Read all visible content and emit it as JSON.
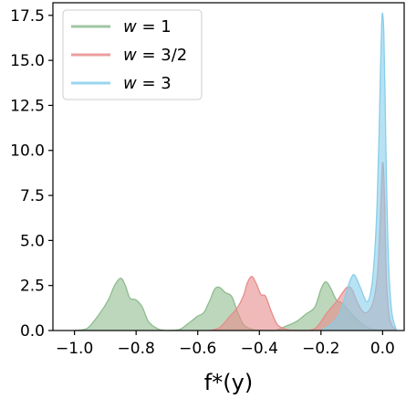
{
  "chart_data": {
    "type": "area",
    "title": "",
    "xlabel": "f*(y)",
    "ylabel": "",
    "xlim": [
      -1.07,
      0.07
    ],
    "ylim": [
      0,
      18.2
    ],
    "x_ticks": [
      -1.0,
      -0.8,
      -0.6,
      -0.4,
      -0.2,
      0.0
    ],
    "x_tick_labels": [
      "−1.0",
      "−0.8",
      "−0.6",
      "−0.4",
      "−0.2",
      "0.0"
    ],
    "y_ticks": [
      0.0,
      2.5,
      5.0,
      7.5,
      10.0,
      12.5,
      15.0,
      17.5
    ],
    "y_tick_labels": [
      "0.0",
      "2.5",
      "5.0",
      "7.5",
      "10.0",
      "12.5",
      "15.0",
      "17.5"
    ],
    "grid": false,
    "legend_position": "top-left",
    "series": [
      {
        "name": "w = 1",
        "legend_parts": [
          "w",
          " = 1"
        ],
        "color": "#8fbc8f",
        "x": [
          -1.0,
          -0.96,
          -0.92,
          -0.89,
          -0.87,
          -0.85,
          -0.835,
          -0.82,
          -0.8,
          -0.78,
          -0.76,
          -0.73,
          -0.7,
          -0.66,
          -0.63,
          -0.6,
          -0.58,
          -0.56,
          -0.545,
          -0.53,
          -0.51,
          -0.49,
          -0.47,
          -0.45,
          -0.42,
          -0.39,
          -0.35,
          -0.32,
          -0.28,
          -0.25,
          -0.22,
          -0.2,
          -0.185,
          -0.17,
          -0.15,
          -0.13,
          -0.1,
          -0.07,
          -0.04,
          0.0
        ],
        "y": [
          0.0,
          0.1,
          0.9,
          1.7,
          2.5,
          2.9,
          2.5,
          1.8,
          1.7,
          1.3,
          0.5,
          0.1,
          0.0,
          0.05,
          0.4,
          0.8,
          1.0,
          1.7,
          2.3,
          2.4,
          2.1,
          1.9,
          1.0,
          0.3,
          0.05,
          0.0,
          0.0,
          0.2,
          0.5,
          0.9,
          1.3,
          2.3,
          2.7,
          2.4,
          1.7,
          1.5,
          0.9,
          0.4,
          0.1,
          0.0
        ]
      },
      {
        "name": "w = 3/2",
        "legend_parts": [
          "w",
          " = 3/2"
        ],
        "color": "#e88c8c",
        "x": [
          -0.56,
          -0.53,
          -0.5,
          -0.47,
          -0.45,
          -0.44,
          -0.425,
          -0.41,
          -0.395,
          -0.38,
          -0.36,
          -0.34,
          -0.31,
          -0.28,
          -0.25,
          -0.22,
          -0.2,
          -0.18,
          -0.15,
          -0.13,
          -0.115,
          -0.1,
          -0.08,
          -0.06,
          -0.04,
          -0.025,
          -0.015,
          -0.008,
          0.0,
          0.006,
          0.012,
          0.02,
          0.03,
          0.045
        ],
        "y": [
          0.0,
          0.15,
          0.7,
          1.3,
          2.0,
          2.6,
          3.0,
          2.6,
          2.0,
          1.9,
          1.0,
          0.3,
          0.05,
          0.0,
          0.0,
          0.1,
          0.5,
          1.0,
          1.6,
          2.1,
          2.4,
          2.3,
          1.5,
          1.0,
          1.2,
          2.0,
          3.5,
          6.0,
          9.3,
          7.5,
          3.0,
          1.0,
          0.3,
          0.0
        ]
      },
      {
        "name": "w = 3",
        "legend_parts": [
          "w",
          " = 3"
        ],
        "color": "#87ceeb",
        "x": [
          -0.2,
          -0.17,
          -0.14,
          -0.12,
          -0.105,
          -0.095,
          -0.085,
          -0.07,
          -0.05,
          -0.035,
          -0.025,
          -0.018,
          -0.012,
          -0.007,
          -0.003,
          0.0,
          0.004,
          0.008,
          0.013,
          0.02,
          0.03,
          0.045
        ],
        "y": [
          0.0,
          0.3,
          0.9,
          2.0,
          2.8,
          3.1,
          2.9,
          2.3,
          1.6,
          2.5,
          4.5,
          7.0,
          10.5,
          14.5,
          17.0,
          17.6,
          16.5,
          13.0,
          8.0,
          3.5,
          1.0,
          0.0
        ]
      }
    ]
  }
}
